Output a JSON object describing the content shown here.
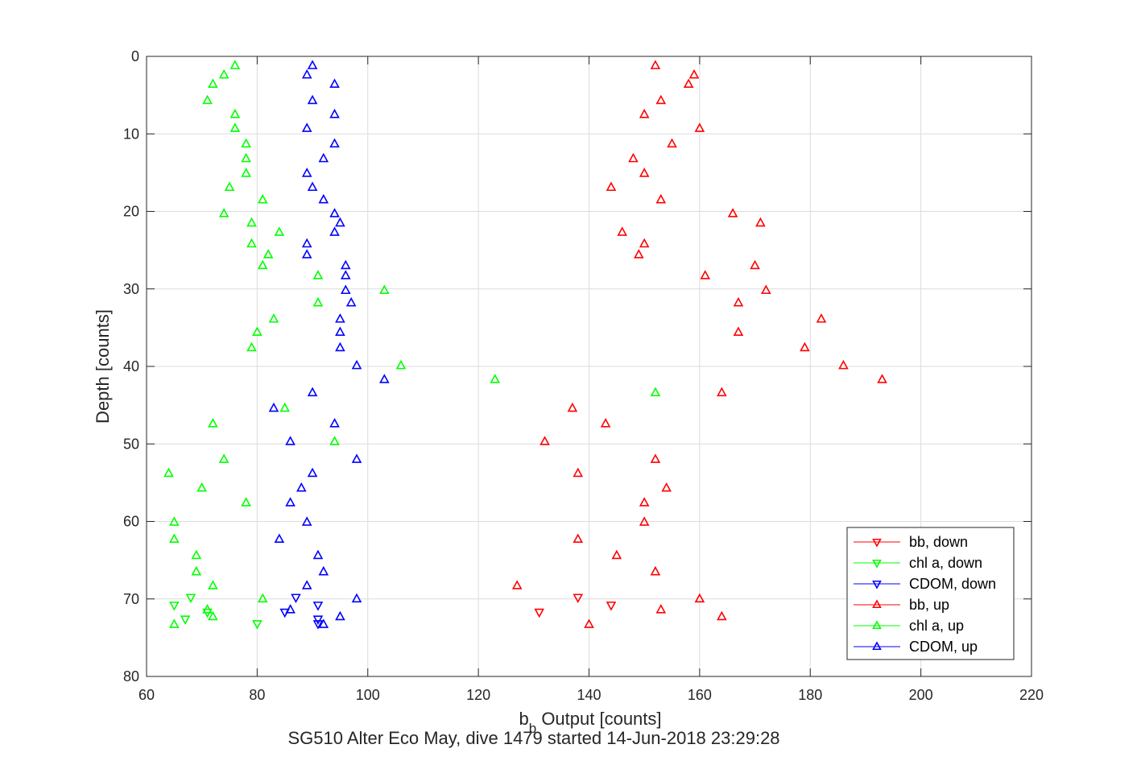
{
  "chart_data": {
    "type": "scatter",
    "title": "SG510 Alter Eco May, dive 1479 started 14-Jun-2018 23:29:28",
    "xlabel_main": "b",
    "xlabel_sub": "b",
    "xlabel_rest": " Output [counts]",
    "ylabel": "Depth [counts]",
    "xlim": [
      60,
      220
    ],
    "ylim": [
      0,
      80
    ],
    "y_reversed": true,
    "x_ticks": [
      60,
      80,
      100,
      120,
      140,
      160,
      180,
      200,
      220
    ],
    "x_tick_labels": [
      "60",
      "80",
      "100",
      "120",
      "140",
      "160",
      "180",
      "200",
      "220"
    ],
    "y_ticks": [
      0,
      10,
      20,
      30,
      40,
      50,
      60,
      70,
      80
    ],
    "y_tick_labels": [
      "0",
      "10",
      "20",
      "30",
      "40",
      "50",
      "60",
      "70",
      "80"
    ],
    "grid": true,
    "legend_position": "bottom-right",
    "series": [
      {
        "name": "bb, down",
        "color": "#ff0000",
        "marker": "triangle-down",
        "points": [
          [
            138,
            69.8
          ],
          [
            144,
            70.8
          ],
          [
            131,
            71.7
          ]
        ]
      },
      {
        "name": "chl a, down",
        "color": "#00ff00",
        "marker": "triangle-down",
        "points": [
          [
            68,
            69.8
          ],
          [
            65,
            70.8
          ],
          [
            71,
            71.7
          ],
          [
            67,
            72.6
          ],
          [
            80,
            73.2
          ]
        ]
      },
      {
        "name": "CDOM, down",
        "color": "#0000ff",
        "marker": "triangle-down",
        "points": [
          [
            87,
            69.8
          ],
          [
            91,
            70.8
          ],
          [
            85,
            71.7
          ],
          [
            91,
            72.6
          ],
          [
            91,
            73.2
          ]
        ]
      },
      {
        "name": "bb, up",
        "color": "#ff0000",
        "marker": "triangle-up",
        "points": [
          [
            152,
            1.2
          ],
          [
            159,
            2.4
          ],
          [
            158,
            3.6
          ],
          [
            153,
            5.7
          ],
          [
            150,
            7.5
          ],
          [
            160,
            9.3
          ],
          [
            155,
            11.3
          ],
          [
            148,
            13.2
          ],
          [
            150,
            15.1
          ],
          [
            144,
            16.9
          ],
          [
            153,
            18.5
          ],
          [
            166,
            20.3
          ],
          [
            171,
            21.5
          ],
          [
            146,
            22.7
          ],
          [
            150,
            24.2
          ],
          [
            149,
            25.6
          ],
          [
            170,
            27.0
          ],
          [
            161,
            28.3
          ],
          [
            172,
            30.2
          ],
          [
            167,
            31.8
          ],
          [
            182,
            33.9
          ],
          [
            167,
            35.6
          ],
          [
            179,
            37.6
          ],
          [
            186,
            39.9
          ],
          [
            193,
            41.7
          ],
          [
            164,
            43.4
          ],
          [
            137,
            45.4
          ],
          [
            143,
            47.4
          ],
          [
            132,
            49.7
          ],
          [
            152,
            52.0
          ],
          [
            138,
            53.8
          ],
          [
            154,
            55.7
          ],
          [
            150,
            57.6
          ],
          [
            150,
            60.1
          ],
          [
            138,
            62.3
          ],
          [
            145,
            64.4
          ],
          [
            152,
            66.5
          ],
          [
            127,
            68.3
          ],
          [
            160,
            70.0
          ],
          [
            153,
            71.4
          ],
          [
            164,
            72.3
          ],
          [
            140,
            73.3
          ]
        ]
      },
      {
        "name": "chl a, up",
        "color": "#00ff00",
        "marker": "triangle-up",
        "points": [
          [
            76,
            1.2
          ],
          [
            74,
            2.4
          ],
          [
            72,
            3.6
          ],
          [
            71,
            5.7
          ],
          [
            76,
            7.5
          ],
          [
            76,
            9.3
          ],
          [
            78,
            11.3
          ],
          [
            78,
            13.2
          ],
          [
            78,
            15.1
          ],
          [
            75,
            16.9
          ],
          [
            81,
            18.5
          ],
          [
            74,
            20.3
          ],
          [
            79,
            21.5
          ],
          [
            84,
            22.7
          ],
          [
            79,
            24.2
          ],
          [
            82,
            25.6
          ],
          [
            81,
            27.0
          ],
          [
            91,
            28.3
          ],
          [
            103,
            30.2
          ],
          [
            91,
            31.8
          ],
          [
            83,
            33.9
          ],
          [
            80,
            35.6
          ],
          [
            79,
            37.6
          ],
          [
            106,
            39.9
          ],
          [
            123,
            41.7
          ],
          [
            152,
            43.4
          ],
          [
            85,
            45.4
          ],
          [
            72,
            47.4
          ],
          [
            94,
            49.7
          ],
          [
            74,
            52.0
          ],
          [
            64,
            53.8
          ],
          [
            70,
            55.7
          ],
          [
            78,
            57.6
          ],
          [
            65,
            60.1
          ],
          [
            65,
            62.3
          ],
          [
            69,
            64.4
          ],
          [
            69,
            66.5
          ],
          [
            72,
            68.3
          ],
          [
            81,
            70.0
          ],
          [
            71,
            71.4
          ],
          [
            72,
            72.3
          ],
          [
            65,
            73.3
          ]
        ]
      },
      {
        "name": "CDOM, up",
        "color": "#0000ff",
        "marker": "triangle-up",
        "points": [
          [
            90,
            1.2
          ],
          [
            89,
            2.4
          ],
          [
            94,
            3.6
          ],
          [
            90,
            5.7
          ],
          [
            94,
            7.5
          ],
          [
            89,
            9.3
          ],
          [
            94,
            11.3
          ],
          [
            92,
            13.2
          ],
          [
            89,
            15.1
          ],
          [
            90,
            16.9
          ],
          [
            92,
            18.5
          ],
          [
            94,
            20.3
          ],
          [
            95,
            21.5
          ],
          [
            94,
            22.7
          ],
          [
            89,
            24.2
          ],
          [
            89,
            25.6
          ],
          [
            96,
            27.0
          ],
          [
            96,
            28.3
          ],
          [
            96,
            30.2
          ],
          [
            97,
            31.8
          ],
          [
            95,
            33.9
          ],
          [
            95,
            35.6
          ],
          [
            95,
            37.6
          ],
          [
            98,
            39.9
          ],
          [
            103,
            41.7
          ],
          [
            90,
            43.4
          ],
          [
            83,
            45.4
          ],
          [
            94,
            47.4
          ],
          [
            86,
            49.7
          ],
          [
            98,
            52.0
          ],
          [
            90,
            53.8
          ],
          [
            88,
            55.7
          ],
          [
            86,
            57.6
          ],
          [
            89,
            60.1
          ],
          [
            84,
            62.3
          ],
          [
            91,
            64.4
          ],
          [
            92,
            66.5
          ],
          [
            89,
            68.3
          ],
          [
            98,
            70.0
          ],
          [
            86,
            71.4
          ],
          [
            95,
            72.3
          ],
          [
            92,
            73.3
          ]
        ]
      }
    ]
  }
}
